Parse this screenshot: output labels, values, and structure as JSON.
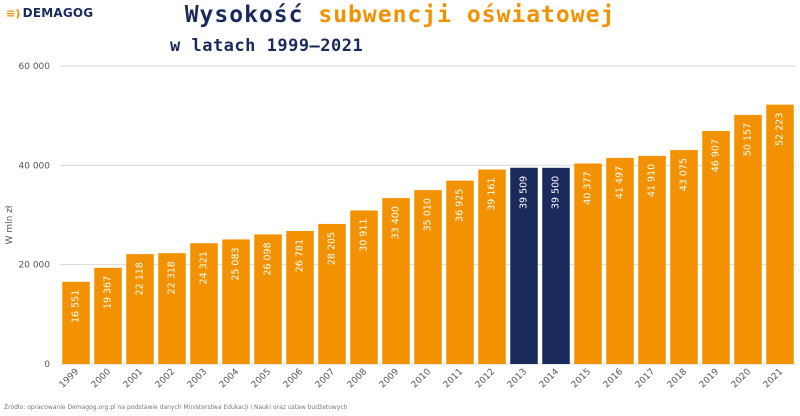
{
  "logo": {
    "mark": "≡)",
    "text": "DEMAGOG"
  },
  "header": {
    "title_part1": "Wysokość",
    "title_part2": "subwencji oświatowej",
    "subtitle": "w latach 1999–2021"
  },
  "footnote": "Źródło: opracowanie Demagog.org.pl na podstawie danych Ministerstwa Edukacji i Nauki oraz ustaw budżetowych",
  "colors": {
    "bar": "#f39200",
    "highlight": "#1a2a5c",
    "label": "#ffffff",
    "grid": "#d9d9d9",
    "axis_text": "#555555"
  },
  "chart_data": {
    "type": "bar",
    "categories": [
      "1999",
      "2000",
      "2001",
      "2002",
      "2003",
      "2004",
      "2005",
      "2006",
      "2007",
      "2008",
      "2009",
      "2010",
      "2011",
      "2012",
      "2013",
      "2014",
      "2015",
      "2016",
      "2017",
      "2018",
      "2019",
      "2020",
      "2021"
    ],
    "values": [
      16551,
      19367,
      22118,
      22318,
      24321,
      25083,
      26098,
      26781,
      28205,
      30911,
      33400,
      35010,
      36925,
      39161,
      39509,
      39500,
      40377,
      41497,
      41910,
      43075,
      46907,
      50157,
      52223
    ],
    "value_labels": [
      "16 551",
      "19 367",
      "22 118",
      "22 318",
      "24 321",
      "25 083",
      "26 098",
      "26 781",
      "28 205",
      "30 911",
      "33 400",
      "35 010",
      "36 925",
      "39 161",
      "39 509",
      "39 500",
      "40 377",
      "41 497",
      "41 910",
      "43 075",
      "46 907",
      "50 157",
      "52 223"
    ],
    "highlighted": [
      "2013",
      "2014"
    ],
    "ylim": [
      0,
      60000
    ],
    "yticks": [
      0,
      20000,
      40000,
      60000
    ],
    "ytick_labels": [
      "0",
      "20 000",
      "40 000",
      "60 000"
    ],
    "ylabel": "W mln zł",
    "xlabel": "",
    "grid": true
  }
}
